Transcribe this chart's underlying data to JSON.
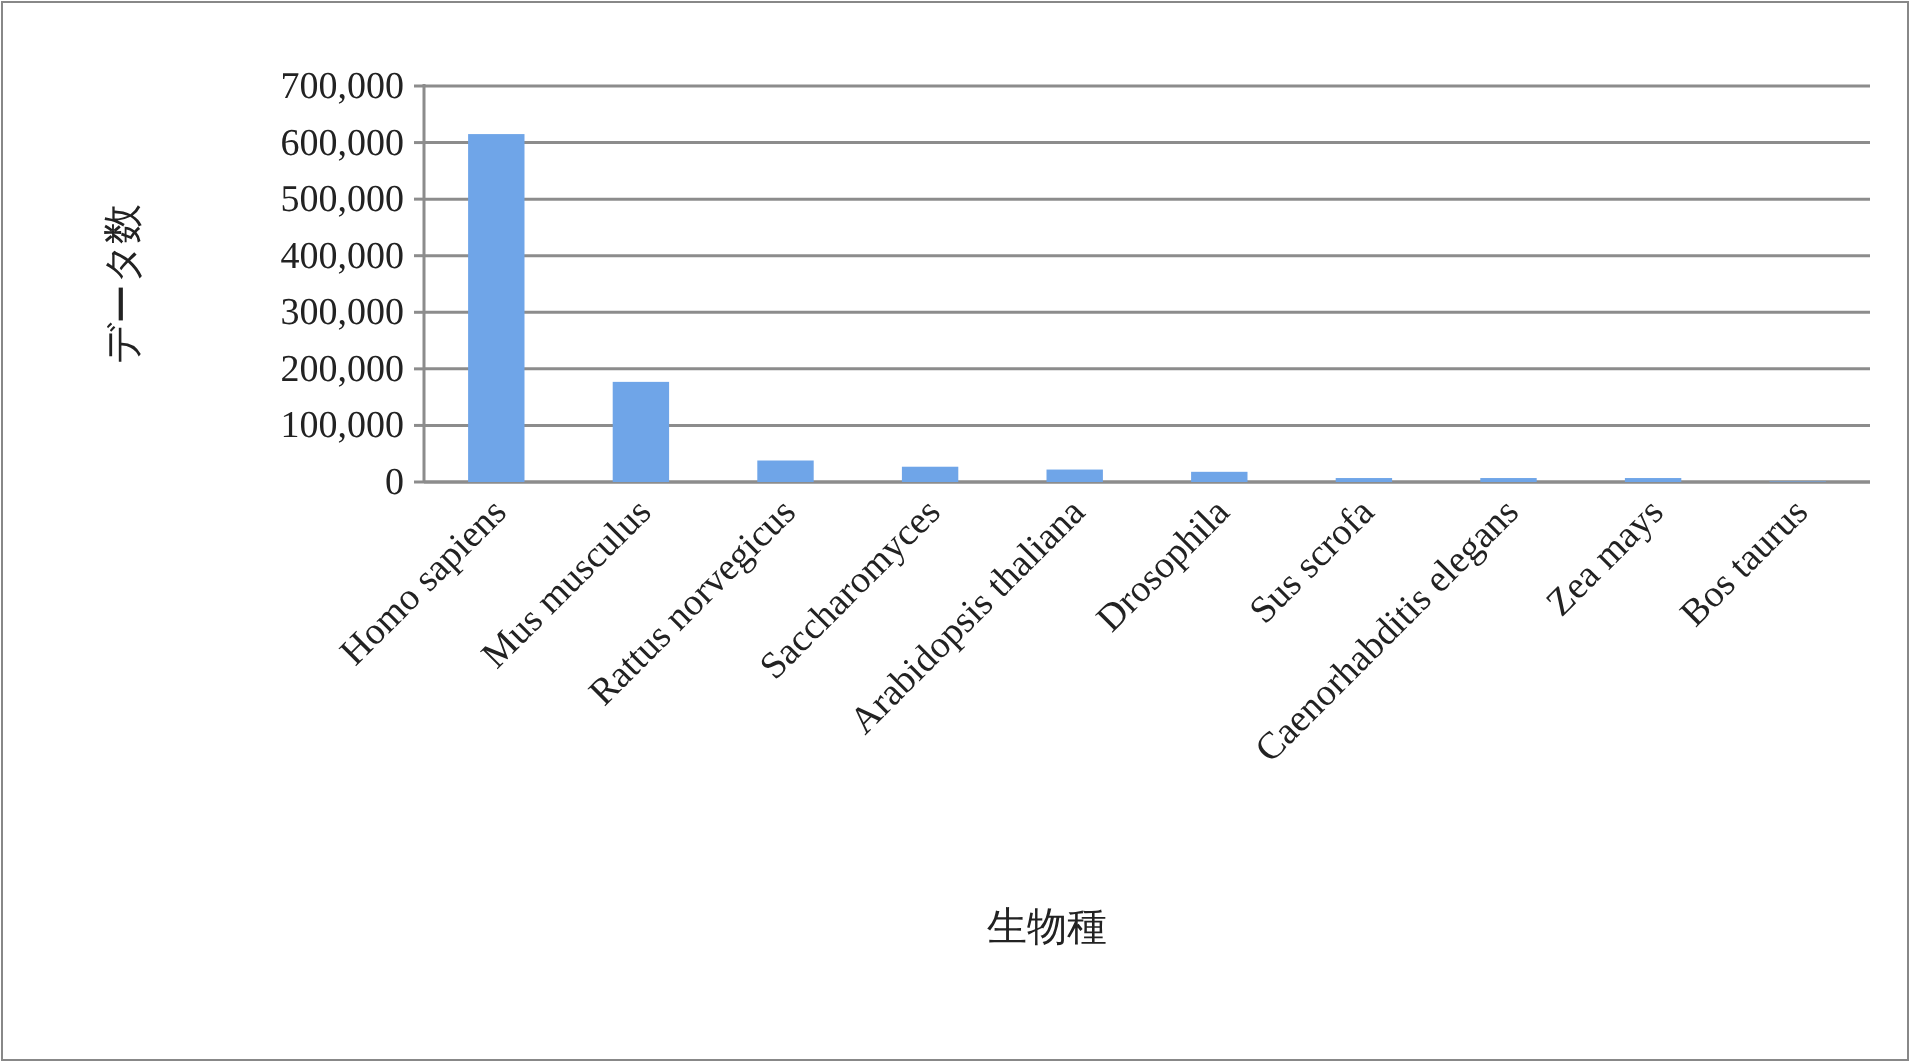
{
  "chart_data": {
    "type": "bar",
    "xlabel": "生物種",
    "ylabel": "データ数",
    "categories": [
      "Homo sapiens",
      "Mus musculus",
      "Rattus norvegicus",
      "Saccharomyces",
      "Arabidopsis thaliana",
      "Drosophila",
      "Sus scrofa",
      "Caenorhabditis elegans",
      "Zea mays",
      "Bos taurus"
    ],
    "values": [
      615000,
      177000,
      38000,
      27000,
      22000,
      18000,
      7000,
      7000,
      7000,
      1000
    ],
    "color": "#6fa5e8",
    "ylim": [
      0,
      700000
    ],
    "yticks": [
      0,
      {
        "value": 100000,
        "label": "100,000"
      },
      {
        "value": 200000,
        "label": "200,000"
      },
      {
        "value": 300000,
        "label": "300,000"
      },
      {
        "value": 400000,
        "label": "400,000"
      },
      {
        "value": 500000,
        "label": "500,000"
      },
      {
        "value": 600000,
        "label": "600,000"
      },
      {
        "value": 700000,
        "label": "700,000"
      }
    ],
    "grid": "y"
  }
}
